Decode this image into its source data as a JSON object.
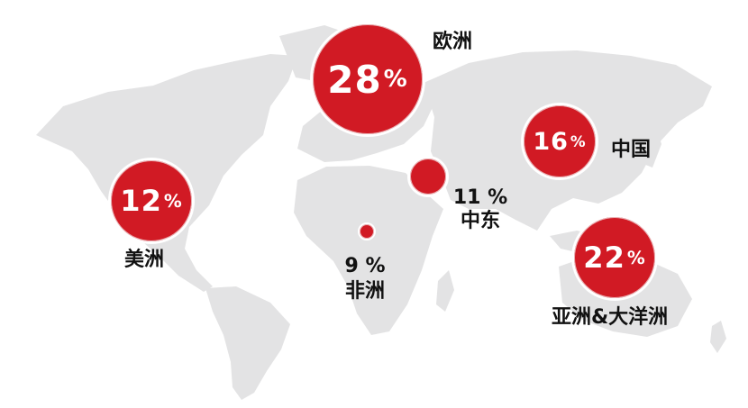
{
  "colors": {
    "bubble": "#d11a24",
    "land": "#e3e3e4",
    "text": "#111111"
  },
  "regions": [
    {
      "key": "europe",
      "name": "欧洲",
      "value_text": "28",
      "unit": "%"
    },
    {
      "key": "china",
      "name": "中国",
      "value_text": "16",
      "unit": "%"
    },
    {
      "key": "americas",
      "name": "美洲",
      "value_text": "12",
      "unit": "%"
    },
    {
      "key": "mideast",
      "name": "中东",
      "value_text": "11 %",
      "unit": ""
    },
    {
      "key": "africa",
      "name": "非洲",
      "value_text": "9 %",
      "unit": ""
    },
    {
      "key": "asiapac",
      "name": "亚洲&大洋洲",
      "value_text": "22",
      "unit": "%"
    }
  ]
}
